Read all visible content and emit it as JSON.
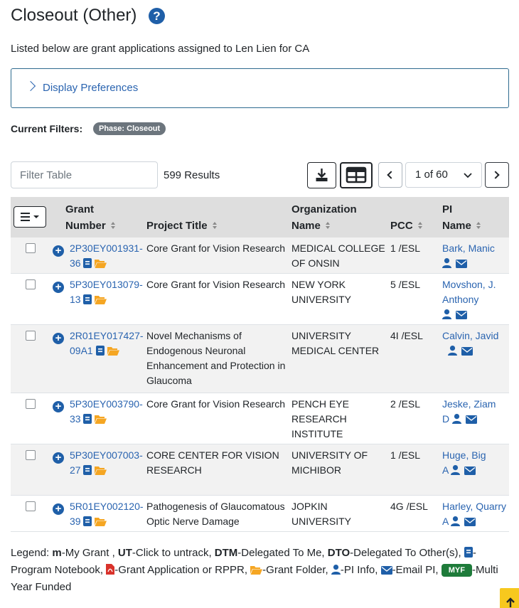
{
  "header": {
    "title": "Closeout (Other)",
    "help_icon": "question-circle-icon",
    "subtitle": "Listed below are grant applications assigned to Len Lien for CA"
  },
  "preferences": {
    "label": "Display Preferences"
  },
  "filters": {
    "label": "Current Filters:",
    "badge": "Phase: Closeout"
  },
  "toolbar": {
    "filter_placeholder": "Filter Table",
    "results": "599 Results",
    "page_select": "1 of 60"
  },
  "table": {
    "columns": [
      {
        "line1": "Grant",
        "line2": "Number"
      },
      {
        "line1": "",
        "line2": "Project Title"
      },
      {
        "line1": "Organization",
        "line2": "Name"
      },
      {
        "line1": "",
        "line2": "PCC"
      },
      {
        "line1": "PI",
        "line2": "Name"
      }
    ],
    "rows": [
      {
        "grant_a": "2P30EY001931-",
        "grant_b": "36",
        "title_lines": [
          "Core Grant for Vision Research"
        ],
        "org_lines": [
          "MEDICAL COLLEGE",
          "OF ONSIN"
        ],
        "pcc": "1 /ESL",
        "pi_lines": [
          "Bark, Manic"
        ]
      },
      {
        "grant_a": "5P30EY013079-",
        "grant_b": "13",
        "title_lines": [
          "Core Grant for Vision Research"
        ],
        "org_lines": [
          "NEW YORK",
          "UNIVERSITY"
        ],
        "pcc": "5 /ESL",
        "pi_lines": [
          "Movshon, J.",
          "Anthony"
        ]
      },
      {
        "grant_a": "2R01EY017427-",
        "grant_b": "09A1",
        "title_lines": [
          "Novel Mechanisms of",
          "Endogenous Neuronal",
          "Enhancement and Protection in",
          "Glaucoma"
        ],
        "org_lines": [
          "UNIVERSITY",
          "MEDICAL CENTER"
        ],
        "pcc": "4I /ESL",
        "pi_lines": [
          "Calvin,  Javid"
        ]
      },
      {
        "grant_a": "5P30EY003790-",
        "grant_b": "33",
        "title_lines": [
          "Core Grant for Vision Research"
        ],
        "org_lines": [
          "PENCH EYE",
          "RESEARCH",
          "INSTITUTE"
        ],
        "pcc": "2 /ESL",
        "pi_lines": [
          " Jeske,  Ziam",
          "D"
        ]
      },
      {
        "grant_a": "5P30EY007003-",
        "grant_b": "27",
        "title_lines": [
          "CORE CENTER FOR VISION",
          "RESEARCH"
        ],
        "org_lines": [
          "UNIVERSITY OF",
          "MICHIBOR"
        ],
        "pcc": "1 /ESL",
        "pi_lines": [
          "Huge, Big",
          "A"
        ]
      },
      {
        "grant_a": "5R01EY002120-",
        "grant_b": "39",
        "title_lines": [
          "Pathogenesis of Glaucomatous",
          "Optic Nerve Damage"
        ],
        "org_lines": [
          "JOPKIN",
          "UNIVERSITY"
        ],
        "pcc": "4G /ESL",
        "pi_lines": [
          " Harley, Quarry",
          "A"
        ]
      }
    ]
  },
  "legend": {
    "prefix": "Legend: ",
    "m_key": "m",
    "m_text": "-My Grant , ",
    "ut_key": "UT",
    "ut_text": "-Click to untrack, ",
    "dtm_key": "DTM",
    "dtm_text": "-Delegated To Me, ",
    "dto_key": "DTO",
    "dto_text": "-Delegated To Other(s), ",
    "notebook_text": "-Program Notebook, ",
    "pdf_text": "-Grant Application or RPPR, ",
    "folder_text": "-Grant Folder, ",
    "pi_text": "-PI Info, ",
    "email_text": "-Email PI, ",
    "myf_badge": "MYF",
    "myf_text": "-Multi Year Funded"
  },
  "colors": {
    "link": "#2a64b0",
    "accent": "#1f5fa8",
    "folder": "#f5a623",
    "pdf": "#d9322b",
    "myf": "#1e7b3a",
    "scroll_top": "#f7c81e"
  },
  "icons": [
    "question-circle-icon",
    "chevron-right-icon",
    "download-icon",
    "grid-icon",
    "chevron-left-icon",
    "chevron-down-icon",
    "plus-circle-icon",
    "notebook-icon",
    "folder-icon",
    "user-icon",
    "envelope-icon",
    "pdf-icon",
    "arrow-up-icon"
  ]
}
